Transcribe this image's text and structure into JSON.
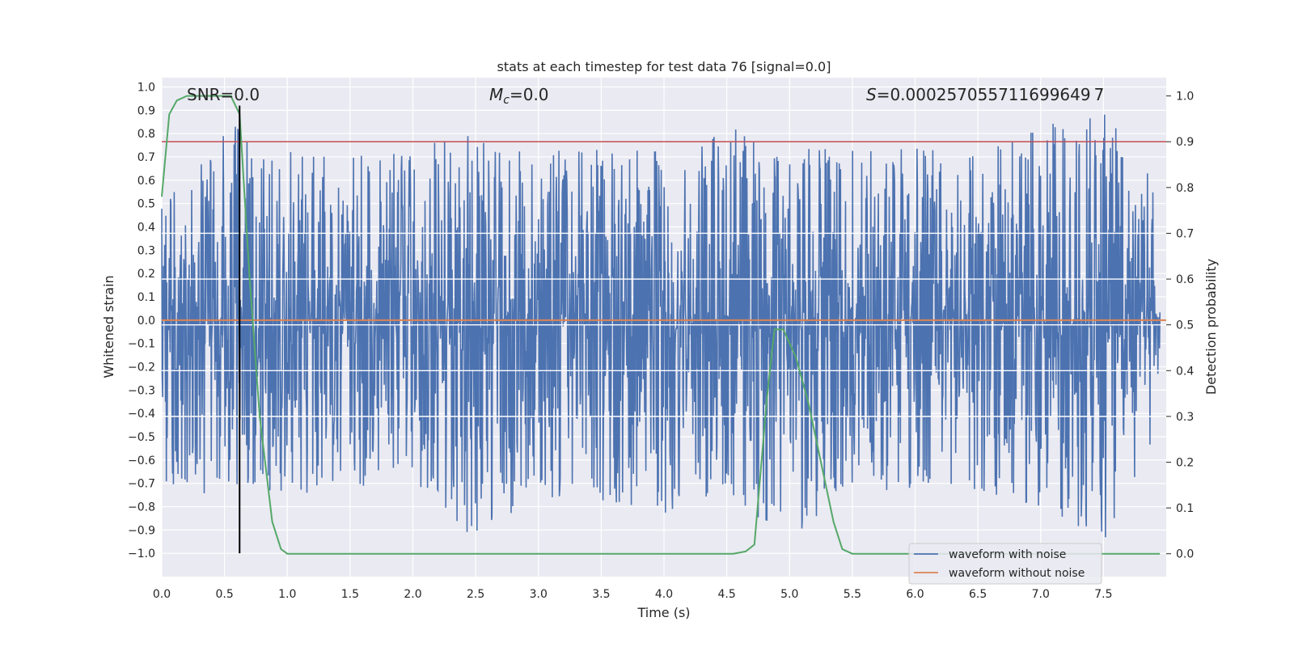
{
  "chart_data": {
    "type": "line",
    "title": "stats at each timestep for test data 76 [signal=0.0]",
    "xlabel": "Time (s)",
    "ylabel": "Whitened strain",
    "y2label": "Detection probability",
    "xlim": [
      0.0,
      8.0
    ],
    "ylim": [
      -1.1,
      1.04
    ],
    "y2lim": [
      -0.05,
      1.04
    ],
    "xticks": [
      "0.0",
      "0.5",
      "1.0",
      "1.5",
      "2.0",
      "2.5",
      "3.0",
      "3.5",
      "4.0",
      "4.5",
      "5.0",
      "5.5",
      "6.0",
      "6.5",
      "7.0",
      "7.5"
    ],
    "yticks": [
      "−1.0",
      "−0.9",
      "−0.8",
      "−0.7",
      "−0.6",
      "−0.5",
      "−0.4",
      "−0.3",
      "−0.2",
      "−0.1",
      "0.0",
      "0.1",
      "0.2",
      "0.3",
      "0.4",
      "0.5",
      "0.6",
      "0.7",
      "0.8",
      "0.9",
      "1.0"
    ],
    "y2ticks": [
      "0.0",
      "0.1",
      "0.2",
      "0.3",
      "0.4",
      "0.5",
      "0.6",
      "0.7",
      "0.8",
      "0.9",
      "1.0"
    ],
    "annotations": {
      "snr": "SNR=0.0",
      "mc_symbol": "M",
      "mc_sub": "c",
      "mc_value": "=0.0",
      "s_symbol": "S",
      "s_value": "=0.000257055711699649 7"
    },
    "threshold": {
      "value": 0.9,
      "axis": "right",
      "color": "#c44e52"
    },
    "marker_line": {
      "x": 0.62,
      "y_from": -1.0,
      "y_to": 0.92,
      "color": "#000000"
    },
    "series": [
      {
        "name": "waveform with noise",
        "color": "#4c72b0",
        "axis": "left",
        "style": "dense noise",
        "envelope_x": [
          0.0,
          0.5,
          1.0,
          1.5,
          2.0,
          2.5,
          3.0,
          3.5,
          4.0,
          4.5,
          5.0,
          5.5,
          6.0,
          6.5,
          7.0,
          7.5,
          7.95
        ],
        "envelope_upper": [
          0.48,
          0.86,
          0.73,
          0.72,
          0.73,
          0.83,
          0.72,
          0.74,
          0.73,
          0.83,
          0.75,
          0.74,
          0.74,
          0.73,
          0.83,
          0.9,
          0.56
        ],
        "envelope_lower": [
          -0.76,
          -0.76,
          -0.75,
          -0.72,
          -0.68,
          -0.97,
          -0.74,
          -0.83,
          -0.85,
          -0.77,
          -0.97,
          -0.74,
          -0.72,
          -0.73,
          -0.8,
          -0.95,
          -0.45
        ]
      },
      {
        "name": "waveform without noise",
        "color": "#dd8452",
        "axis": "left",
        "x": [
          0.0,
          8.0
        ],
        "y": [
          0.0,
          0.0
        ]
      },
      {
        "name": "detection probability",
        "color": "#55a868",
        "axis": "right",
        "legend": false,
        "x": [
          0.0,
          0.06,
          0.12,
          0.2,
          0.3,
          0.4,
          0.5,
          0.55,
          0.62,
          0.7,
          0.78,
          0.88,
          0.95,
          1.0,
          2.0,
          3.0,
          4.0,
          4.55,
          4.65,
          4.72,
          4.82,
          4.88,
          4.95,
          5.05,
          5.15,
          5.25,
          5.35,
          5.42,
          5.5,
          6.0,
          7.0,
          7.95
        ],
        "y": [
          0.78,
          0.96,
          0.99,
          1.0,
          1.0,
          1.0,
          1.0,
          1.0,
          0.96,
          0.6,
          0.3,
          0.07,
          0.01,
          0.0,
          0.0,
          0.0,
          0.0,
          0.0,
          0.005,
          0.02,
          0.34,
          0.49,
          0.49,
          0.43,
          0.33,
          0.2,
          0.07,
          0.01,
          0.0,
          0.0,
          0.0,
          0.0
        ]
      }
    ],
    "legend": {
      "position": "lower right",
      "entries": [
        "waveform with noise",
        "waveform without noise"
      ]
    }
  }
}
